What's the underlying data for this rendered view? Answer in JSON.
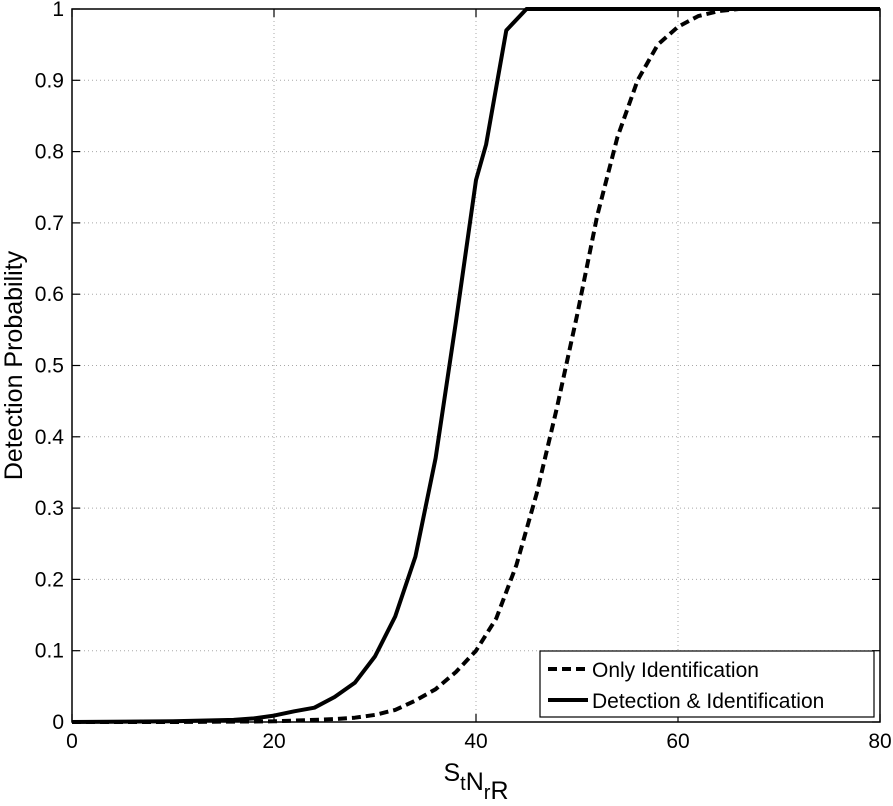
{
  "chart_data": {
    "type": "line",
    "title": "",
    "xlabel": {
      "parts": [
        {
          "text": "S",
          "sub": false
        },
        {
          "text": "t",
          "sub": true
        },
        {
          "text": "N",
          "sub": false
        },
        {
          "text": "r",
          "sub": true
        },
        {
          "text": "R",
          "sub": false
        }
      ]
    },
    "ylabel": "Detection Probability",
    "xlim": [
      0,
      80
    ],
    "ylim": [
      0,
      1
    ],
    "xticks": [
      0,
      20,
      40,
      60,
      80
    ],
    "xtick_labels": [
      "0",
      "20",
      "40",
      "60",
      "80"
    ],
    "yticks": [
      0,
      0.1,
      0.2,
      0.3,
      0.4,
      0.5,
      0.6,
      0.7,
      0.8,
      0.9,
      1
    ],
    "ytick_labels": [
      "0",
      "0.1",
      "0.2",
      "0.3",
      "0.4",
      "0.5",
      "0.6",
      "0.7",
      "0.8",
      "0.9",
      "1"
    ],
    "grid": true,
    "legend_position": "bottom-right",
    "series": [
      {
        "name": "Only Identification",
        "line_style": "dashed",
        "color": "#000000",
        "x": [
          0,
          10,
          20,
          22,
          24,
          26,
          28,
          30,
          32,
          34,
          36,
          38,
          40,
          42,
          44,
          46,
          48,
          50,
          52,
          54,
          56,
          58,
          60,
          62,
          64,
          66,
          68,
          70,
          80
        ],
        "y": [
          0,
          0,
          0.001,
          0.002,
          0.003,
          0.004,
          0.006,
          0.01,
          0.017,
          0.03,
          0.046,
          0.07,
          0.1,
          0.145,
          0.22,
          0.32,
          0.44,
          0.57,
          0.71,
          0.82,
          0.9,
          0.95,
          0.975,
          0.99,
          0.997,
          1,
          1,
          1,
          1
        ]
      },
      {
        "name": "Detection & Identification",
        "line_style": "solid",
        "color": "#000000",
        "x": [
          0,
          10,
          16,
          18,
          20,
          22,
          24,
          26,
          28,
          30,
          32,
          34,
          36,
          38,
          40,
          41,
          43,
          45,
          50,
          60,
          80
        ],
        "y": [
          0,
          0.001,
          0.003,
          0.005,
          0.009,
          0.015,
          0.02,
          0.035,
          0.055,
          0.092,
          0.148,
          0.232,
          0.37,
          0.56,
          0.76,
          0.81,
          0.97,
          1,
          1,
          1,
          1
        ]
      }
    ]
  }
}
